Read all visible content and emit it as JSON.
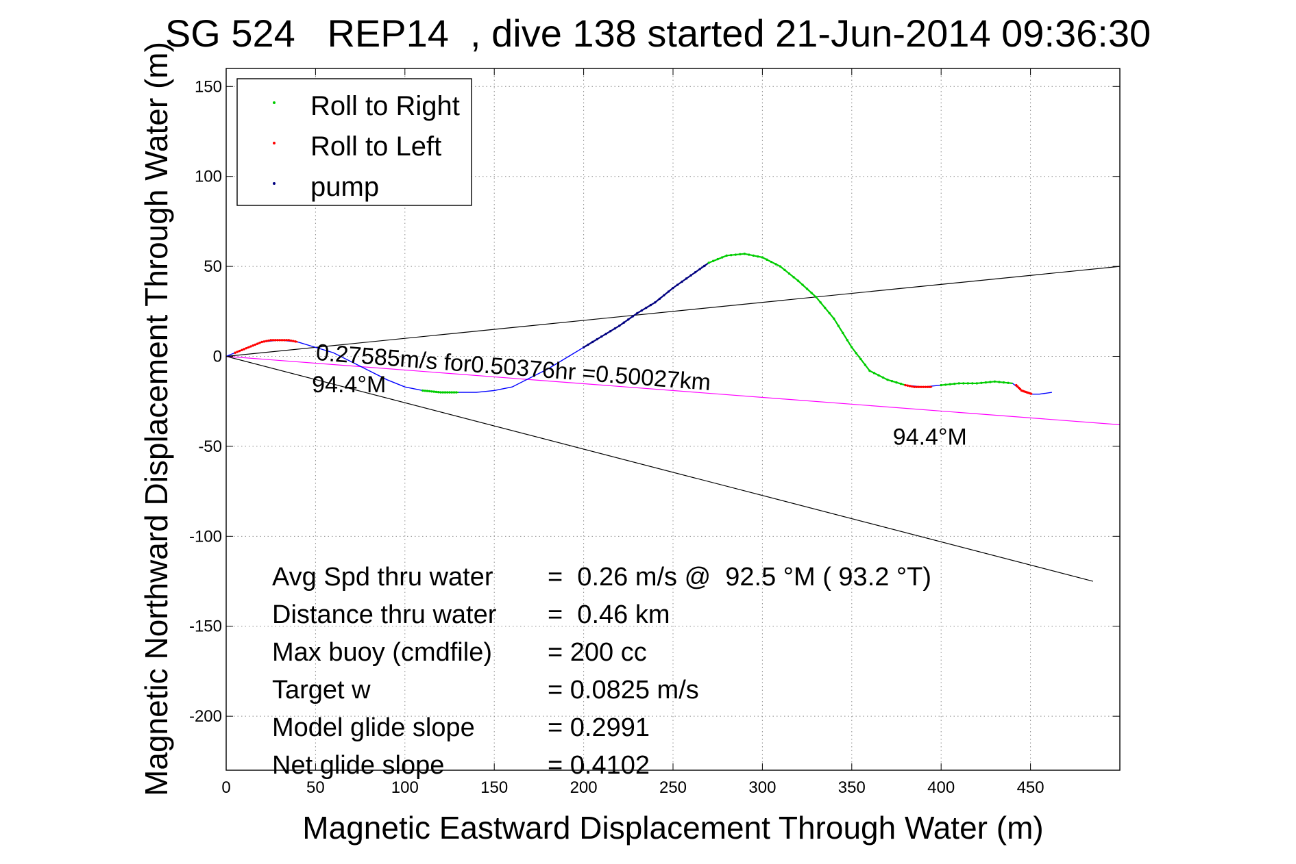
{
  "chart_data": {
    "type": "line",
    "title": "SG 524   REP14  , dive 138 started 21-Jun-2014 09:36:30",
    "xlabel": "Magnetic Eastward Displacement Through Water (m)",
    "ylabel": "Magnetic Northward Displacement Through Water (m)",
    "xlim": [
      0,
      500
    ],
    "ylim": [
      -230,
      160
    ],
    "xticks": [
      0,
      50,
      100,
      150,
      200,
      250,
      300,
      350,
      400,
      450
    ],
    "yticks": [
      150,
      100,
      50,
      0,
      -50,
      -100,
      -150,
      -200
    ],
    "xtick_labels": [
      "0",
      "50",
      "100",
      "150",
      "200",
      "250",
      "300",
      "350",
      "400",
      "450"
    ],
    "ytick_labels": [
      "150",
      "100",
      "50",
      "0",
      "-50",
      "-100",
      "-150",
      "-200"
    ],
    "grid": true,
    "legend_position": "top-left",
    "legend": [
      {
        "label": "Roll to Right",
        "color": "#00cc00"
      },
      {
        "label": "Roll to Left",
        "color": "#ff0000"
      },
      {
        "label": "pump",
        "color": "#000080"
      }
    ],
    "track_color": "#0000ff",
    "track": {
      "x": [
        0,
        10,
        20,
        30,
        40,
        50,
        60,
        70,
        80,
        90,
        100,
        110,
        120,
        130,
        140,
        150,
        160,
        170,
        180,
        190,
        200,
        210,
        220,
        230,
        240,
        250,
        260,
        270,
        280,
        290,
        300,
        310,
        320,
        330,
        340,
        350,
        360,
        370,
        380,
        390,
        400,
        410,
        420,
        430,
        440,
        445,
        450,
        455,
        462
      ],
      "y": [
        0,
        4,
        8,
        9,
        8,
        5,
        2,
        -3,
        -8,
        -13,
        -17,
        -19,
        -20,
        -20,
        -20,
        -19,
        -17,
        -12,
        -7,
        -1,
        5,
        11,
        17,
        24,
        30,
        38,
        45,
        52,
        56,
        57,
        55,
        50,
        42,
        33,
        21,
        5,
        -8,
        -13,
        -16,
        -17,
        -16,
        -15,
        -15,
        -14,
        -15,
        -19,
        -21,
        -21,
        -20
      ]
    },
    "segments": [
      {
        "mode": "Roll to Left",
        "x": [
          5,
          10,
          15,
          20,
          25,
          30,
          35,
          40
        ],
        "y": [
          2,
          4,
          6,
          8,
          9,
          9,
          9,
          8
        ]
      },
      {
        "mode": "Roll to Right",
        "x": [
          110,
          115,
          120,
          125,
          130
        ],
        "y": [
          -19,
          -19.5,
          -20,
          -20,
          -20
        ]
      },
      {
        "mode": "pump",
        "x": [
          200,
          210,
          220,
          230,
          240,
          250,
          260,
          270
        ],
        "y": [
          5,
          11,
          17,
          24,
          30,
          38,
          45,
          52
        ]
      },
      {
        "mode": "Roll to Right",
        "x": [
          270,
          280,
          290,
          300,
          310,
          320,
          330,
          340,
          350,
          360,
          370,
          380
        ],
        "y": [
          52,
          56,
          57,
          55,
          50,
          42,
          33,
          21,
          5,
          -8,
          -13,
          -16
        ]
      },
      {
        "mode": "Roll to Left",
        "x": [
          380,
          385,
          390,
          395
        ],
        "y": [
          -16,
          -17,
          -17,
          -17
        ]
      },
      {
        "mode": "Roll to Right",
        "x": [
          400,
          410,
          420,
          430,
          440
        ],
        "y": [
          -16,
          -15,
          -15,
          -14,
          -15
        ]
      },
      {
        "mode": "Roll to Left",
        "x": [
          442,
          445,
          448,
          451
        ],
        "y": [
          -16,
          -19,
          -20,
          -21
        ]
      }
    ],
    "lines": [
      {
        "name": "upper-bound-line",
        "color": "#000000",
        "x": [
          0,
          500
        ],
        "y": [
          0,
          50
        ]
      },
      {
        "name": "lower-bound-line",
        "color": "#000000",
        "x": [
          0,
          485
        ],
        "y": [
          0,
          -125
        ]
      },
      {
        "name": "heading-line",
        "color": "#ff00ff",
        "x": [
          0,
          500
        ],
        "y": [
          0,
          -38
        ]
      }
    ],
    "annotations": [
      {
        "text": "0.27585m/s for0.50376hr =0.50027km",
        "x": 50,
        "y": -2,
        "rotate": 4.4
      },
      {
        "text": "94.4°M",
        "x": 48,
        "y": -20,
        "rotate": 0
      },
      {
        "text": "94.4°M",
        "x": 373,
        "y": -49,
        "rotate": 0
      }
    ],
    "stats": [
      {
        "label": "Avg Spd thru water",
        "value": "=  0.26 m/s @  92.5 °M ( 93.2 °T)"
      },
      {
        "label": "Distance thru water",
        "value": "=  0.46 km"
      },
      {
        "label": "Max buoy (cmdfile)",
        "value": "= 200 cc"
      },
      {
        "label": "Target w",
        "value": "= 0.0825 m/s"
      },
      {
        "label": "Model glide slope",
        "value": "= 0.2991"
      },
      {
        "label": "Net glide slope",
        "value": "= 0.4102"
      }
    ]
  }
}
